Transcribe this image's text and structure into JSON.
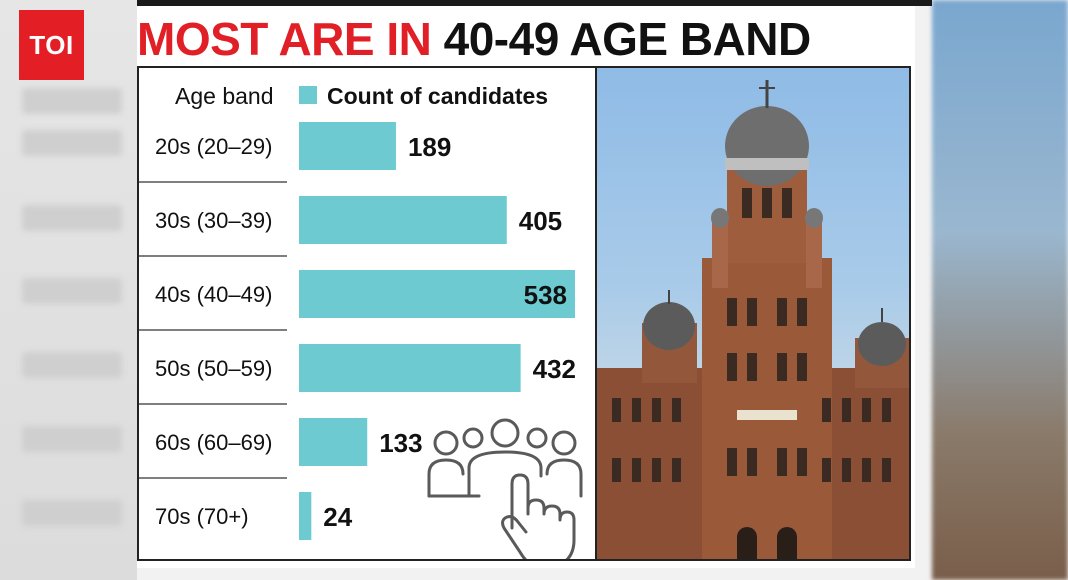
{
  "brand": {
    "logo_text": "TOI",
    "color": "#e31e24"
  },
  "headline": {
    "part1": "MOST ARE IN ",
    "part2": "40-49 AGE BAND",
    "color1": "#e01f26",
    "color2": "#111111"
  },
  "chart_data": {
    "type": "bar",
    "orientation": "horizontal",
    "category_header": "Age band",
    "legend": "Count of candidates",
    "legend_placement": "top",
    "bar_color": "#6ccad0",
    "categories": [
      "20s (20–29)",
      "30s (30–39)",
      "40s (40–49)",
      "50s (50–59)",
      "60s (60–69)",
      "70s (70+)"
    ],
    "series": [
      {
        "name": "Count of candidates",
        "values": [
          189,
          405,
          538,
          432,
          133,
          24
        ]
      }
    ],
    "xlim": [
      0,
      538
    ],
    "grid": false
  },
  "icons": {
    "crowd": "crowd-touch-icon",
    "photo": "municipal-building-photo"
  }
}
